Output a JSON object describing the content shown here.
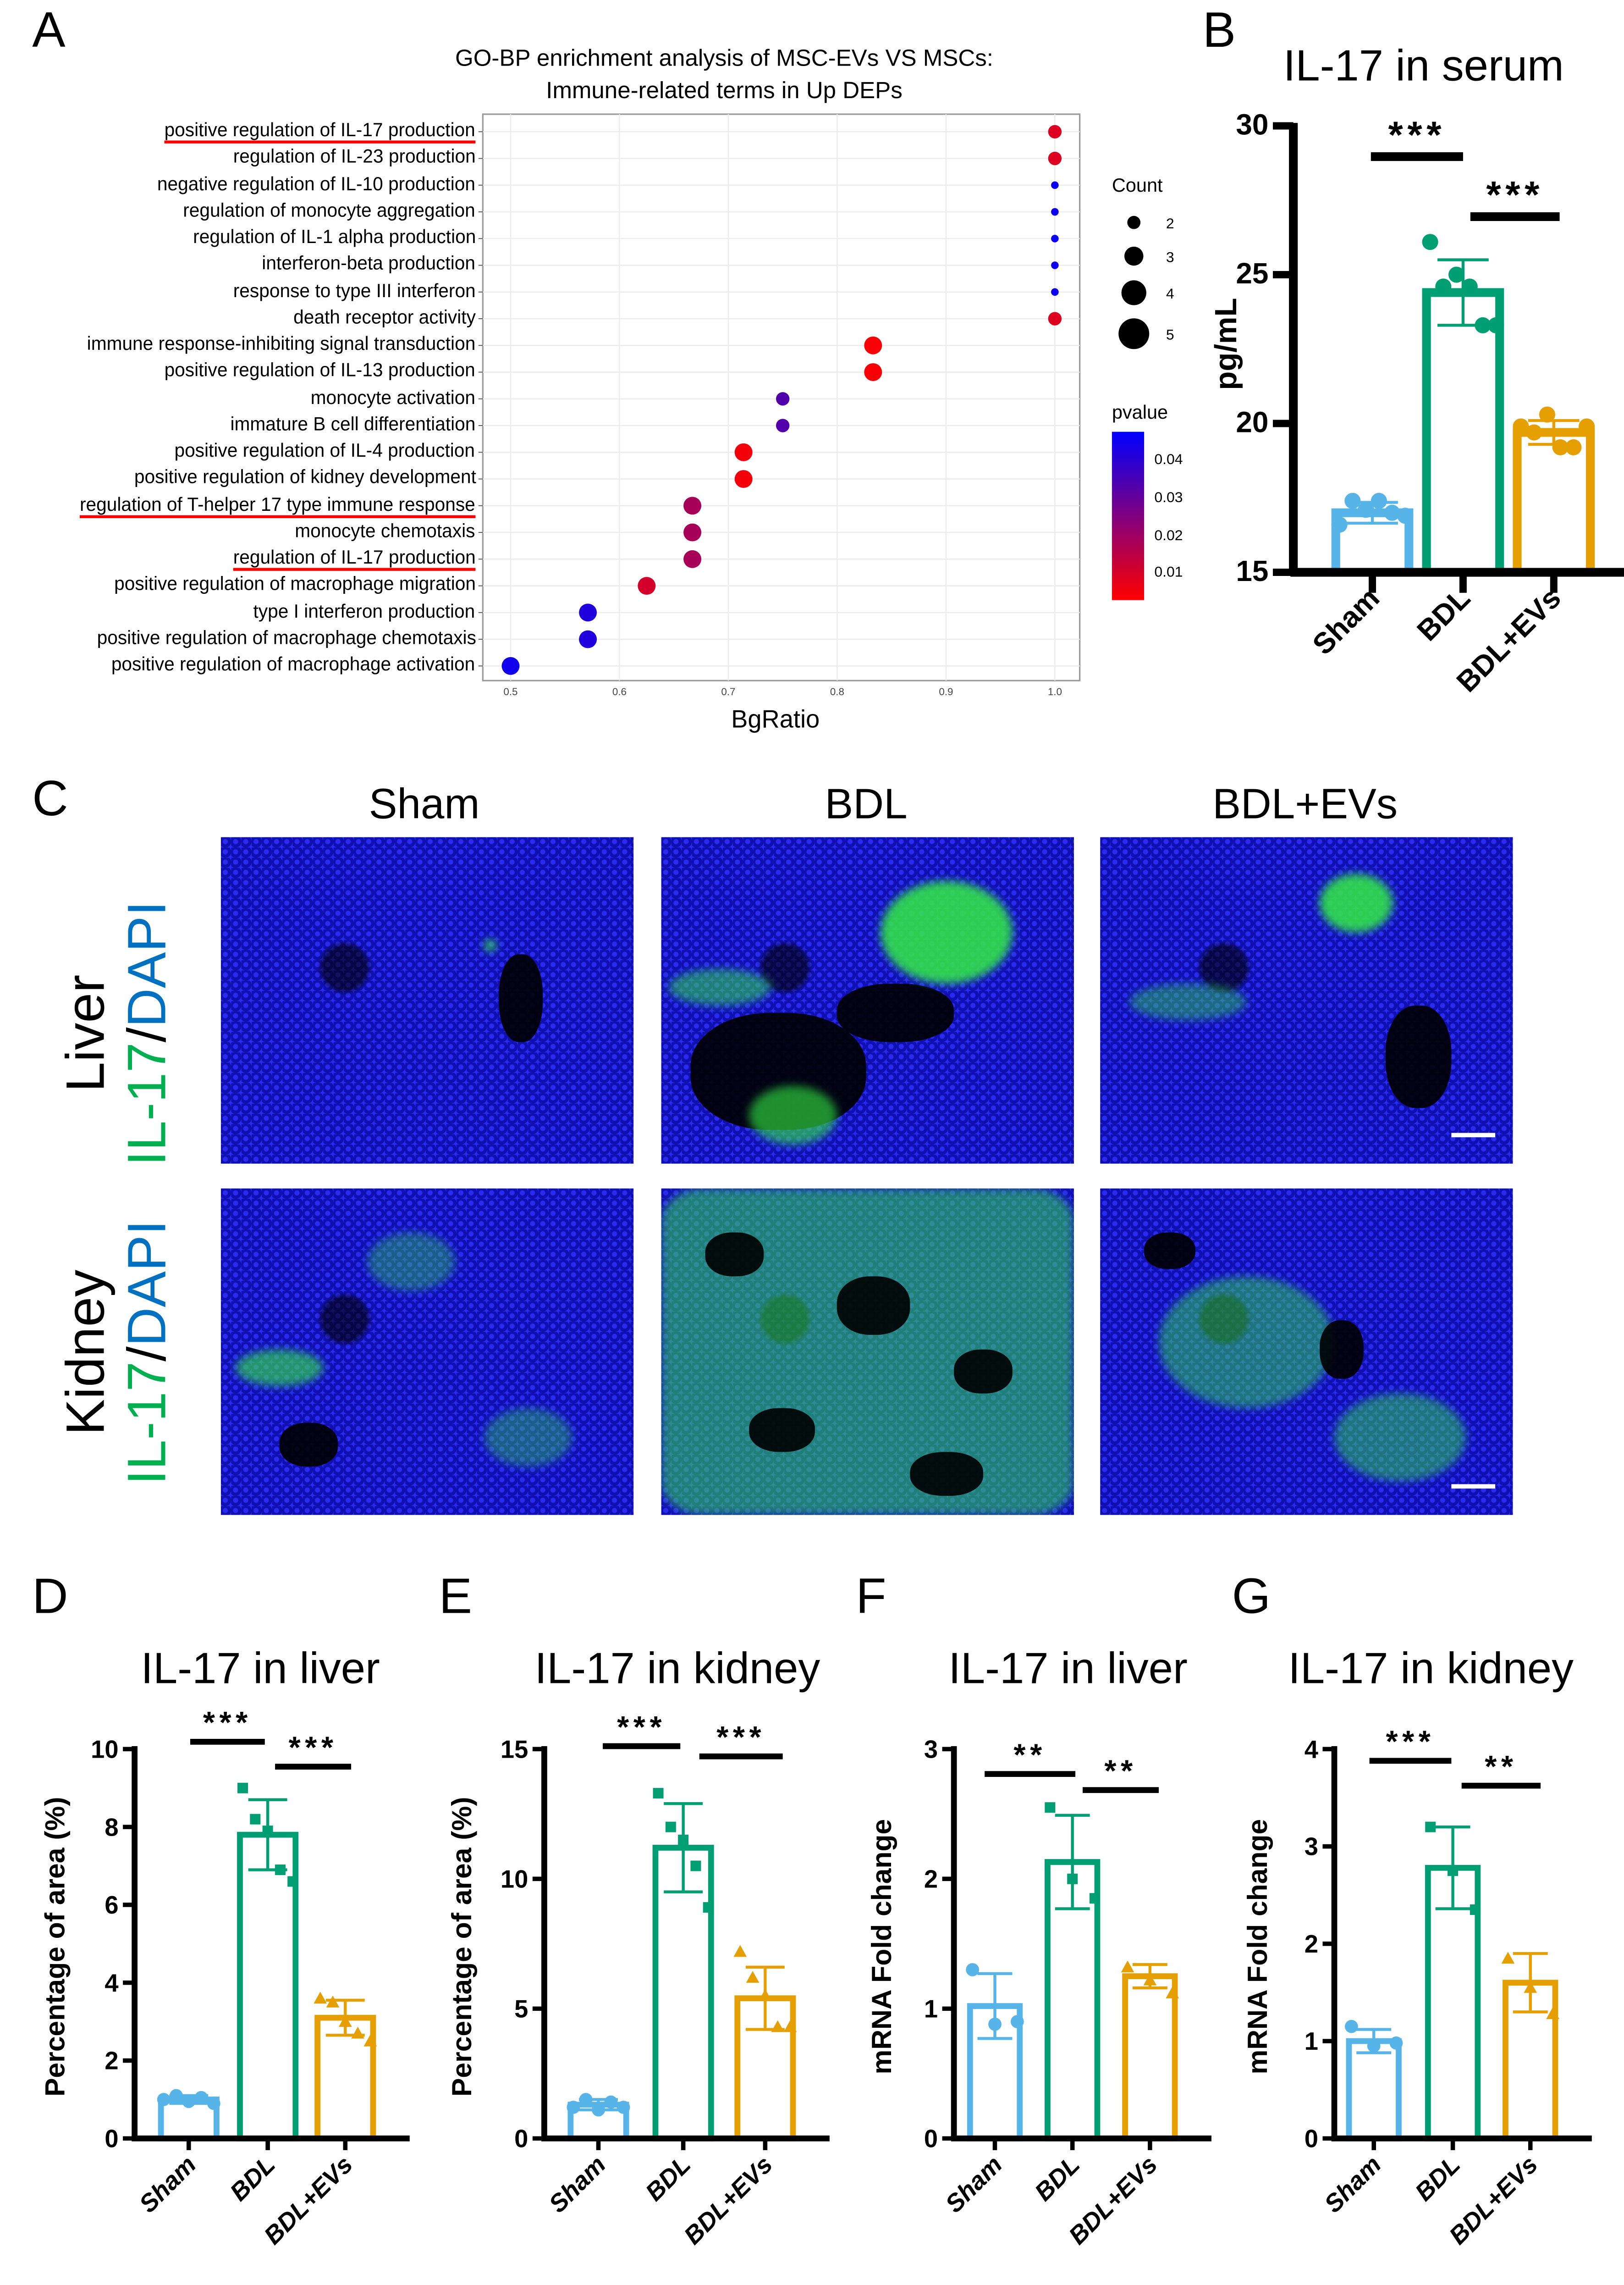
{
  "panels": {
    "A": "A",
    "B": "B",
    "C": "C",
    "D": "D",
    "E": "E",
    "F": "F",
    "G": "G"
  },
  "go_chart": {
    "chart_data": {
      "type": "scatter",
      "title_line1": "GO-BP enrichment analysis of MSC-EVs VS MSCs:",
      "title_line2": "Immune-related terms in Up DEPs",
      "xlabel": "BgRatio",
      "xlim": [
        0.49,
        1.02
      ],
      "xticks": [
        "0.5",
        "0.6",
        "0.7",
        "0.8",
        "0.9",
        "1.0"
      ],
      "grid": true,
      "legend_count_title": "Count",
      "legend_count_values": [
        "2",
        "3",
        "4",
        "5"
      ],
      "legend_pvalue_title": "pvalue",
      "legend_pvalue_ticks": [
        "0.04",
        "0.03",
        "0.02",
        "0.01"
      ],
      "pvalue_colors": {
        "low": "#ff0000",
        "high": "#0000ff"
      },
      "highlight_color": "#ff0000",
      "terms": [
        {
          "term": "positive regulation of IL-17 production",
          "bgratio": 1.0,
          "count": 2,
          "pvalue": 0.008,
          "highlighted": true
        },
        {
          "term": "regulation of IL-23 production",
          "bgratio": 1.0,
          "count": 2,
          "pvalue": 0.008,
          "highlighted": false
        },
        {
          "term": "negative regulation of IL-10 production",
          "bgratio": 1.0,
          "count": 1,
          "pvalue": 0.046,
          "highlighted": false
        },
        {
          "term": "regulation of monocyte aggregation",
          "bgratio": 1.0,
          "count": 1,
          "pvalue": 0.046,
          "highlighted": false
        },
        {
          "term": "regulation of IL-1 alpha production",
          "bgratio": 1.0,
          "count": 1,
          "pvalue": 0.046,
          "highlighted": false
        },
        {
          "term": "interferon-beta production",
          "bgratio": 1.0,
          "count": 1,
          "pvalue": 0.046,
          "highlighted": false
        },
        {
          "term": "response to type III interferon",
          "bgratio": 1.0,
          "count": 1,
          "pvalue": 0.046,
          "highlighted": false
        },
        {
          "term": "death receptor activity",
          "bgratio": 1.0,
          "count": 2,
          "pvalue": 0.008,
          "highlighted": false
        },
        {
          "term": "immune response-inhibiting signal transduction",
          "bgratio": 0.833,
          "count": 3,
          "pvalue": 0.003,
          "highlighted": false
        },
        {
          "term": "positive regulation of IL-13 production",
          "bgratio": 0.833,
          "count": 3,
          "pvalue": 0.003,
          "highlighted": false
        },
        {
          "term": "monocyte activation",
          "bgratio": 0.75,
          "count": 2,
          "pvalue": 0.033,
          "highlighted": false
        },
        {
          "term": "immature B cell differentiation",
          "bgratio": 0.75,
          "count": 2,
          "pvalue": 0.033,
          "highlighted": false
        },
        {
          "term": "positive regulation of IL-4 production",
          "bgratio": 0.714,
          "count": 3,
          "pvalue": 0.004,
          "highlighted": false
        },
        {
          "term": "positive regulation of kidney development",
          "bgratio": 0.714,
          "count": 3,
          "pvalue": 0.004,
          "highlighted": false
        },
        {
          "term": "regulation of T-helper 17 type immune response",
          "bgratio": 0.667,
          "count": 3,
          "pvalue": 0.018,
          "highlighted": true
        },
        {
          "term": "monocyte chemotaxis",
          "bgratio": 0.667,
          "count": 3,
          "pvalue": 0.018,
          "highlighted": false
        },
        {
          "term": "regulation of IL-17 production",
          "bgratio": 0.667,
          "count": 3,
          "pvalue": 0.018,
          "highlighted": true
        },
        {
          "term": "positive regulation of macrophage migration",
          "bgratio": 0.625,
          "count": 3,
          "pvalue": 0.01,
          "highlighted": false
        },
        {
          "term": "type I interferon production",
          "bgratio": 0.571,
          "count": 3,
          "pvalue": 0.042,
          "highlighted": false
        },
        {
          "term": "positive regulation of macrophage chemotaxis",
          "bgratio": 0.571,
          "count": 3,
          "pvalue": 0.042,
          "highlighted": false
        },
        {
          "term": "positive regulation of macrophage activation",
          "bgratio": 0.5,
          "count": 3,
          "pvalue": 0.045,
          "highlighted": false
        }
      ]
    }
  },
  "group_colors": {
    "Sham": "#56b4e9",
    "BDL": "#009e73",
    "BDL+EVs": "#e69f00"
  },
  "chart_data": [
    {
      "id": "B",
      "type": "bar",
      "title": "IL-17 in serum",
      "ylabel": "pg/mL",
      "ylim": [
        15,
        30
      ],
      "yticks": [
        "15",
        "20",
        "25",
        "30"
      ],
      "categories": [
        "Sham",
        "BDL",
        "BDL+EVs"
      ],
      "values": [
        17.0,
        24.4,
        19.7
      ],
      "errors": [
        0.35,
        1.1,
        0.4
      ],
      "points": [
        [
          16.6,
          17.4,
          17.1,
          17.4,
          17.0,
          16.9
        ],
        [
          26.1,
          24.6,
          25.0,
          24.6,
          23.3,
          23.3
        ],
        [
          19.9,
          19.7,
          20.3,
          19.2,
          19.2,
          19.9
        ]
      ],
      "markers": [
        "circle",
        "circle",
        "circle"
      ],
      "significance": [
        {
          "from": 0,
          "to": 1,
          "label": "***"
        },
        {
          "from": 1,
          "to": 2,
          "label": "***"
        }
      ]
    },
    {
      "id": "D",
      "type": "bar",
      "title": "IL-17 in liver",
      "ylabel": "Percentage of area (%)",
      "ylim": [
        0,
        10
      ],
      "yticks": [
        "0",
        "2",
        "4",
        "6",
        "8",
        "10"
      ],
      "categories": [
        "Sham",
        "BDL",
        "BDL+EVs"
      ],
      "values": [
        1.0,
        7.8,
        3.1
      ],
      "errors": [
        0.1,
        0.9,
        0.45
      ],
      "points": [
        [
          1.0,
          1.1,
          0.95,
          1.05,
          0.9
        ],
        [
          9.0,
          8.2,
          7.9,
          6.9,
          6.6
        ],
        [
          3.6,
          3.5,
          3.0,
          2.7,
          2.5
        ]
      ],
      "markers": [
        "circle",
        "square",
        "triangle"
      ],
      "significance": [
        {
          "from": 0,
          "to": 1,
          "label": "***"
        },
        {
          "from": 1,
          "to": 2,
          "label": "***"
        }
      ]
    },
    {
      "id": "E",
      "type": "bar",
      "title": "IL-17 in kidney",
      "ylabel": "Percentage of area (%)",
      "ylim": [
        0,
        15
      ],
      "yticks": [
        "0",
        "5",
        "10",
        "15"
      ],
      "categories": [
        "Sham",
        "BDL",
        "BDL+EVs"
      ],
      "values": [
        1.3,
        11.2,
        5.4
      ],
      "errors": [
        0.2,
        1.7,
        1.2
      ],
      "points": [
        [
          1.2,
          1.5,
          1.1,
          1.4,
          1.2
        ],
        [
          13.3,
          12.0,
          11.5,
          10.5,
          8.9
        ],
        [
          7.2,
          6.2,
          5.5,
          4.3,
          4.3
        ]
      ],
      "markers": [
        "circle",
        "square",
        "triangle"
      ],
      "significance": [
        {
          "from": 0,
          "to": 1,
          "label": "***"
        },
        {
          "from": 1,
          "to": 2,
          "label": "***"
        }
      ]
    },
    {
      "id": "F",
      "type": "bar",
      "title": "IL-17 in liver",
      "ylabel": "mRNA Fold change",
      "ylim": [
        0,
        3
      ],
      "yticks": [
        "0",
        "1",
        "2",
        "3"
      ],
      "categories": [
        "Sham",
        "BDL",
        "BDL+EVs"
      ],
      "values": [
        1.02,
        2.13,
        1.25
      ],
      "errors": [
        0.25,
        0.36,
        0.09
      ],
      "points": [
        [
          1.3,
          0.88,
          0.9
        ],
        [
          2.55,
          2.0,
          1.85
        ],
        [
          1.32,
          1.22,
          1.12
        ]
      ],
      "markers": [
        "circle",
        "square",
        "triangle"
      ],
      "significance": [
        {
          "from": 0,
          "to": 1,
          "label": "**"
        },
        {
          "from": 1,
          "to": 2,
          "label": "**"
        }
      ]
    },
    {
      "id": "G",
      "type": "bar",
      "title": "IL-17 in kidney",
      "ylabel": "mRNA Fold change",
      "ylim": [
        0,
        4
      ],
      "yticks": [
        "0",
        "1",
        "2",
        "3",
        "4"
      ],
      "categories": [
        "Sham",
        "BDL",
        "BDL+EVs"
      ],
      "values": [
        1.0,
        2.78,
        1.6
      ],
      "errors": [
        0.12,
        0.42,
        0.3
      ],
      "points": [
        [
          1.15,
          0.95,
          0.98
        ],
        [
          3.2,
          2.75,
          2.35
        ],
        [
          1.85,
          1.55,
          1.28
        ]
      ],
      "markers": [
        "circle",
        "square",
        "triangle"
      ],
      "significance": [
        {
          "from": 0,
          "to": 1,
          "label": "***"
        },
        {
          "from": 1,
          "to": 2,
          "label": "**"
        }
      ]
    }
  ],
  "micrographs": {
    "columns": [
      "Sham",
      "BDL",
      "BDL+EVs"
    ],
    "rows": [
      {
        "tissue": "Liver",
        "stain_green": "IL-17",
        "stain_sep": "/",
        "stain_blue": "DAPI"
      },
      {
        "tissue": "Kidney",
        "stain_green": "IL-17",
        "stain_sep": "/",
        "stain_blue": "DAPI"
      }
    ],
    "stain_colors": {
      "green": "#00b050",
      "blue": "#0070c0"
    }
  }
}
